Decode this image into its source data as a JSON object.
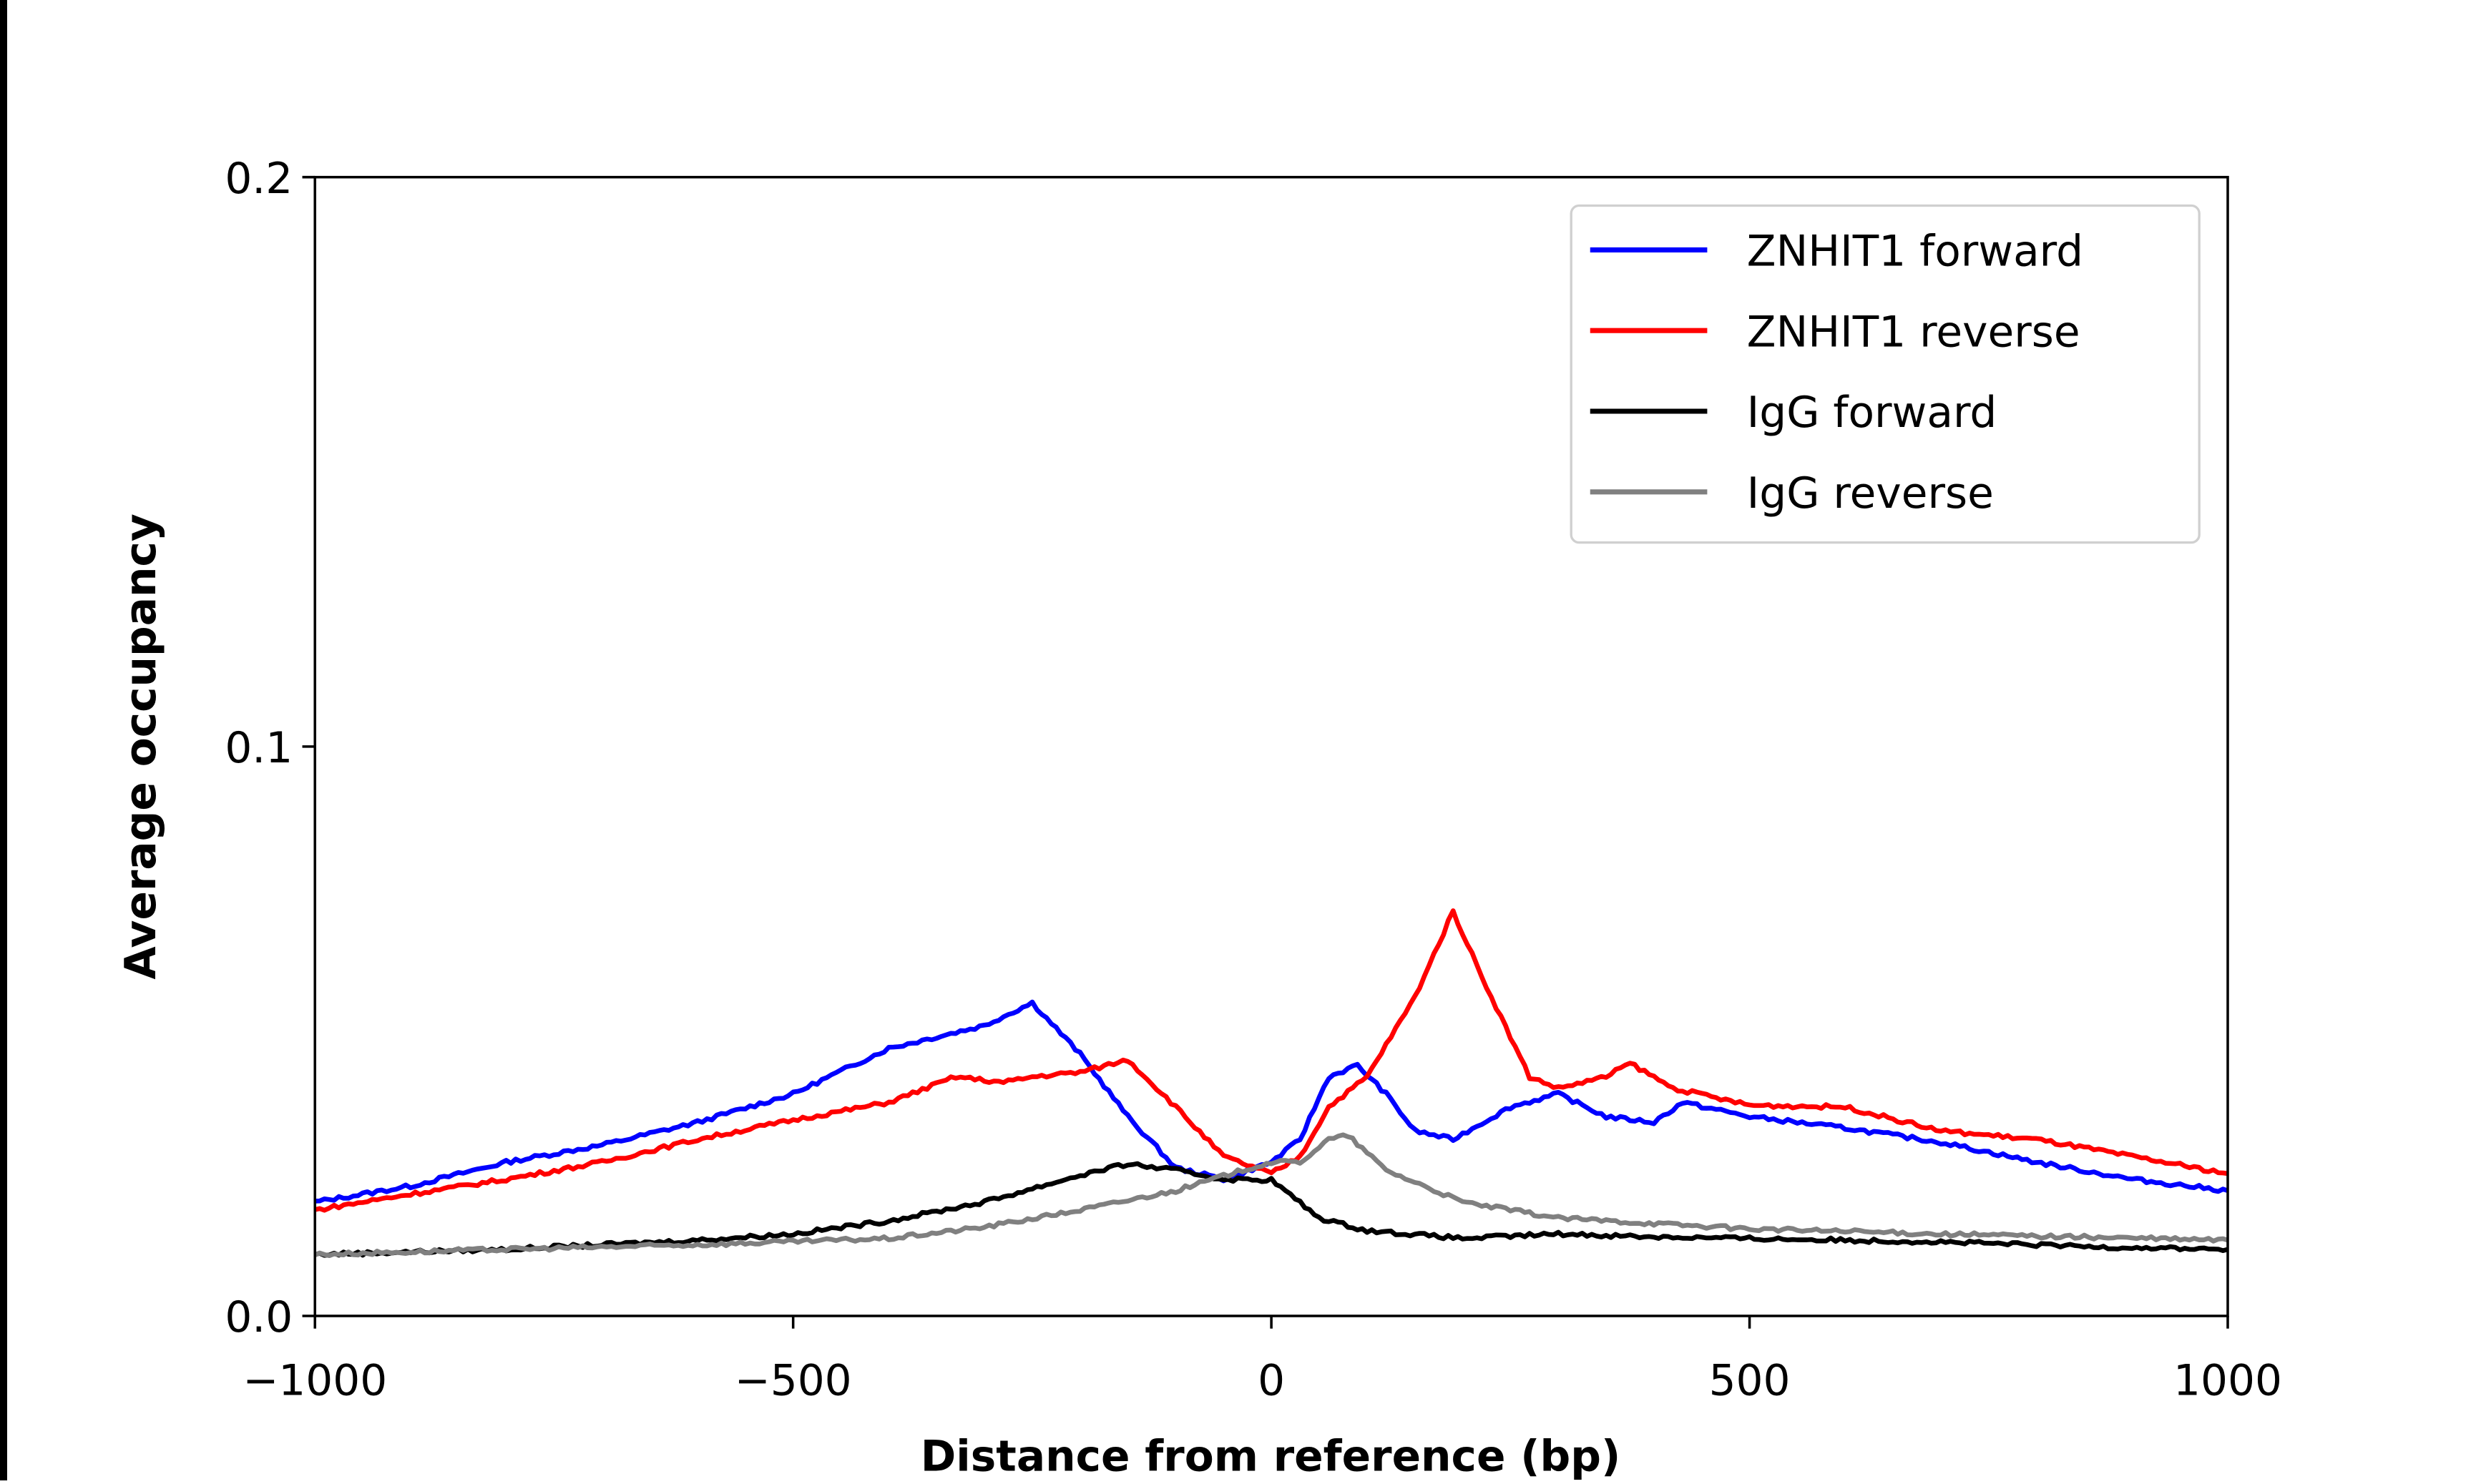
{
  "chart_data": {
    "type": "line",
    "title": "",
    "xlabel": "Distance from reference (bp)",
    "ylabel": "Average occupancy",
    "xlim": [
      -1000,
      1000
    ],
    "ylim": [
      0.0,
      0.2
    ],
    "xticks": [
      -1000,
      -500,
      0,
      500,
      1000
    ],
    "xtick_labels": [
      "−1000",
      "−500",
      "0",
      "500",
      "1000"
    ],
    "yticks": [
      0.0,
      0.1,
      0.2
    ],
    "ytick_labels": [
      "0.0",
      "0.1",
      "0.2"
    ],
    "grid": false,
    "legend_position": "top-right",
    "series": [
      {
        "name": "ZNHIT1 forward",
        "color": "#0000ff",
        "x": [
          -1000,
          -900,
          -800,
          -700,
          -600,
          -500,
          -400,
          -300,
          -250,
          -200,
          -150,
          -100,
          -50,
          0,
          30,
          60,
          90,
          120,
          150,
          190,
          250,
          300,
          350,
          400,
          430,
          500,
          550,
          600,
          700,
          800,
          900,
          1000
        ],
        "y": [
          0.02,
          0.0228,
          0.027,
          0.03,
          0.034,
          0.039,
          0.047,
          0.051,
          0.055,
          0.046,
          0.035,
          0.026,
          0.024,
          0.027,
          0.031,
          0.042,
          0.044,
          0.039,
          0.0325,
          0.031,
          0.0367,
          0.039,
          0.035,
          0.034,
          0.0375,
          0.035,
          0.034,
          0.033,
          0.0305,
          0.027,
          0.024,
          0.022
        ]
      },
      {
        "name": "ZNHIT1 reverse",
        "color": "#ff0000",
        "x": [
          -1000,
          -900,
          -800,
          -700,
          -600,
          -500,
          -400,
          -330,
          -280,
          -250,
          -200,
          -150,
          -100,
          -50,
          0,
          30,
          60,
          100,
          150,
          190,
          230,
          270,
          300,
          350,
          375,
          420,
          500,
          600,
          700,
          800,
          900,
          1000
        ],
        "y": [
          0.0186,
          0.0214,
          0.024,
          0.027,
          0.031,
          0.0344,
          0.0375,
          0.042,
          0.041,
          0.042,
          0.0428,
          0.045,
          0.0367,
          0.028,
          0.025,
          0.028,
          0.0367,
          0.042,
          0.056,
          0.071,
          0.056,
          0.042,
          0.04,
          0.042,
          0.0444,
          0.04,
          0.037,
          0.0367,
          0.0325,
          0.031,
          0.028,
          0.025
        ]
      },
      {
        "name": "IgG forward",
        "color": "#000000",
        "x": [
          -1000,
          -800,
          -600,
          -500,
          -400,
          -300,
          -200,
          -150,
          -100,
          -50,
          0,
          50,
          100,
          200,
          300,
          400,
          500,
          700,
          850,
          1000
        ],
        "y": [
          0.0108,
          0.0117,
          0.0133,
          0.0144,
          0.0167,
          0.02,
          0.0247,
          0.0267,
          0.0256,
          0.024,
          0.0239,
          0.0172,
          0.015,
          0.0136,
          0.0144,
          0.0139,
          0.0136,
          0.013,
          0.0122,
          0.0117
        ]
      },
      {
        "name": "IgG reverse",
        "color": "#808080",
        "x": [
          -1000,
          -800,
          -600,
          -400,
          -300,
          -200,
          -100,
          -30,
          0,
          30,
          60,
          80,
          120,
          200,
          300,
          500,
          700,
          1000
        ],
        "y": [
          0.0108,
          0.0117,
          0.0125,
          0.0136,
          0.0156,
          0.0186,
          0.022,
          0.0256,
          0.027,
          0.027,
          0.031,
          0.0317,
          0.0256,
          0.02,
          0.0172,
          0.0153,
          0.0144,
          0.0133
        ]
      }
    ]
  }
}
